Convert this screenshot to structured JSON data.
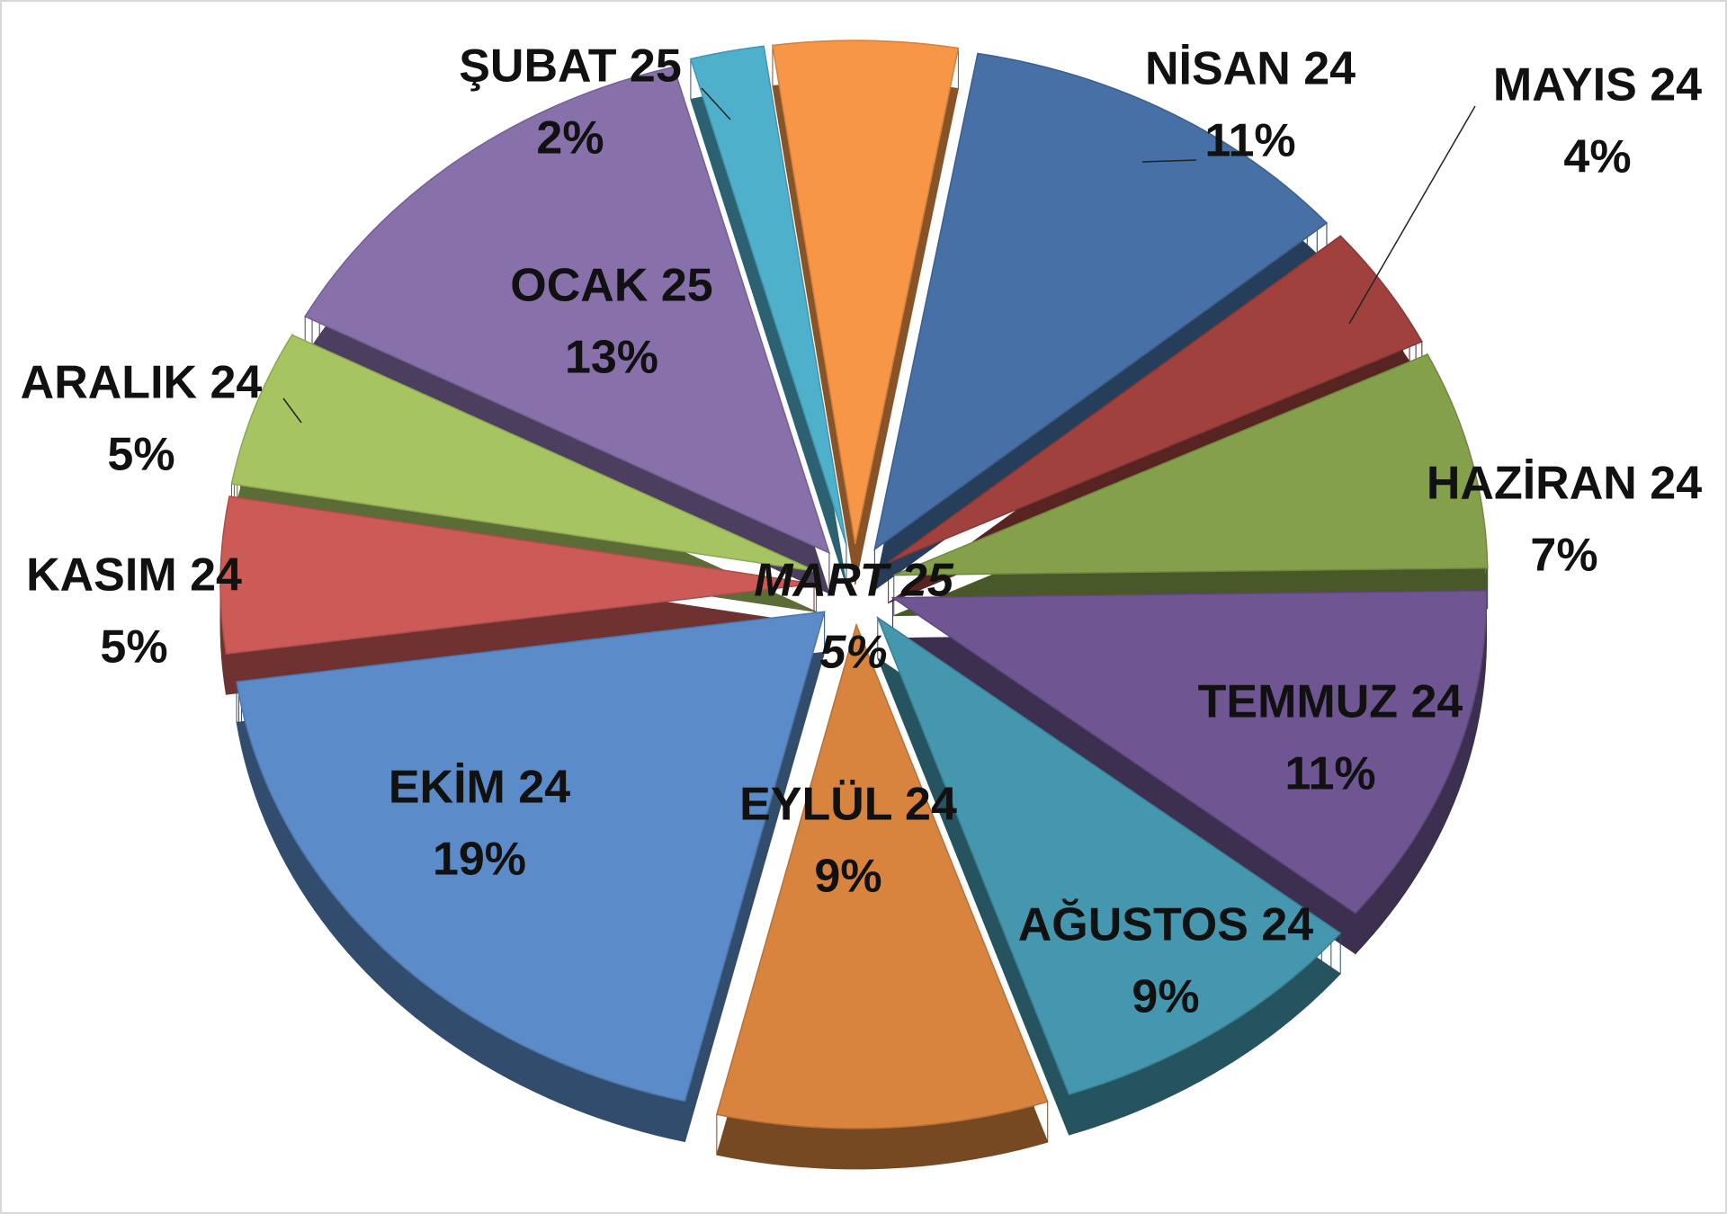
{
  "chart_data": {
    "type": "pie3d",
    "categories": [
      "MART 25",
      "NİSAN 24",
      "MAYIS 24",
      "HAZİRAN 24",
      "TEMMUZ 24",
      "AĞUSTOS 24",
      "EYLÜL 24",
      "EKİM 24",
      "KASIM 24",
      "ARALIK 24",
      "OCAK 25",
      "ŞUBAT 25"
    ],
    "values": [
      5,
      11,
      4,
      7,
      11,
      9,
      9,
      19,
      5,
      5,
      13,
      2
    ],
    "value_labels": [
      "5%",
      "11%",
      "4%",
      "7%",
      "11%",
      "9%",
      "9%",
      "19%",
      "5%",
      "5%",
      "13%",
      "2%"
    ],
    "colors": [
      "#f79646",
      "#4670a6",
      "#a0413e",
      "#85a04a",
      "#6f5592",
      "#4497ae",
      "#d9843e",
      "#5b8bc8",
      "#cc5b57",
      "#a7c462",
      "#8870ab",
      "#4fb0cc"
    ]
  }
}
